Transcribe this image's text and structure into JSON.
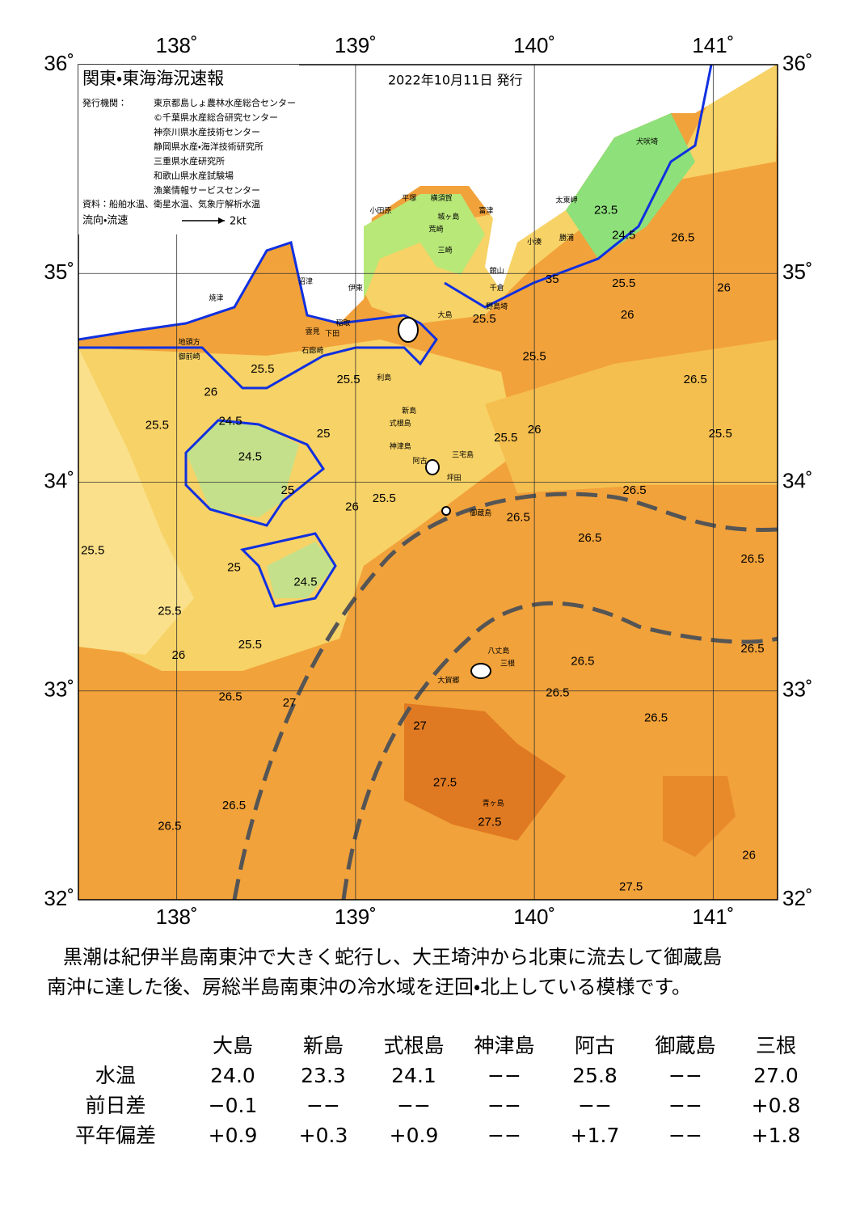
{
  "map": {
    "title": "関東・東海海況速報",
    "date": "2022年10月11日 発行",
    "issuer_label": "発行機関：",
    "issuers": [
      "東京都島しょ農林水産総合センター",
      "©千葉県水産総合研究センター",
      "神奈川県水産技術センター",
      "静岡県水産・海洋技術研究所",
      "三重県水産研究所",
      "和歌山県水産試験場",
      "漁業情報サービスセンター"
    ],
    "sources": "資料：船舶水温、衛星水温、気象庁解析水温",
    "legend_label": "流向・流速",
    "legend_scale": "2kt",
    "lon_ticks": [
      {
        "value": 138,
        "label": "138˚"
      },
      {
        "value": 139,
        "label": "139˚"
      },
      {
        "value": 140,
        "label": "140˚"
      },
      {
        "value": 141,
        "label": "141˚"
      }
    ],
    "lat_ticks": [
      {
        "value": 36,
        "label": "36˚"
      },
      {
        "value": 35,
        "label": "35˚"
      },
      {
        "value": 34,
        "label": "34˚"
      },
      {
        "value": 33,
        "label": "33˚"
      },
      {
        "value": 32,
        "label": "32˚"
      }
    ],
    "lonlim": [
      137.45,
      141.36
    ],
    "latlim": [
      32,
      36
    ],
    "place_names": [
      {
        "label": "犬吠埼",
        "lon": 140.63,
        "lat": 35.63
      },
      {
        "label": "太東岬",
        "lon": 140.18,
        "lat": 35.35
      },
      {
        "label": "勝浦",
        "lon": 140.18,
        "lat": 35.17
      },
      {
        "label": "小湊",
        "lon": 140.0,
        "lat": 35.15
      },
      {
        "label": "館山",
        "lon": 139.79,
        "lat": 35.01
      },
      {
        "label": "千倉",
        "lon": 139.79,
        "lat": 34.93
      },
      {
        "label": "野島埼",
        "lon": 139.79,
        "lat": 34.84
      },
      {
        "label": "富津",
        "lon": 139.73,
        "lat": 35.3
      },
      {
        "label": "横須賀",
        "lon": 139.48,
        "lat": 35.36
      },
      {
        "label": "城ヶ島",
        "lon": 139.52,
        "lat": 35.27
      },
      {
        "label": "荒崎",
        "lon": 139.45,
        "lat": 35.21
      },
      {
        "label": "三崎",
        "lon": 139.5,
        "lat": 35.11
      },
      {
        "label": "平塚",
        "lon": 139.3,
        "lat": 35.36
      },
      {
        "label": "小田原",
        "lon": 139.14,
        "lat": 35.3
      },
      {
        "label": "伊東",
        "lon": 139.0,
        "lat": 34.93
      },
      {
        "label": "沼津",
        "lon": 138.72,
        "lat": 34.96
      },
      {
        "label": "焼津",
        "lon": 138.22,
        "lat": 34.88
      },
      {
        "label": "地頭方",
        "lon": 138.07,
        "lat": 34.67
      },
      {
        "label": "御前崎",
        "lon": 138.07,
        "lat": 34.6
      },
      {
        "label": "稲取",
        "lon": 138.93,
        "lat": 34.76
      },
      {
        "label": "下田",
        "lon": 138.87,
        "lat": 34.71
      },
      {
        "label": "雲見",
        "lon": 138.76,
        "lat": 34.72
      },
      {
        "label": "石廊崎",
        "lon": 138.76,
        "lat": 34.63
      },
      {
        "label": "大島",
        "lon": 139.5,
        "lat": 34.8
      },
      {
        "label": "利島",
        "lon": 139.16,
        "lat": 34.5
      },
      {
        "label": "新島",
        "lon": 139.3,
        "lat": 34.34
      },
      {
        "label": "式根島",
        "lon": 139.25,
        "lat": 34.28
      },
      {
        "label": "神津島",
        "lon": 139.25,
        "lat": 34.17
      },
      {
        "label": "阿古",
        "lon": 139.36,
        "lat": 34.1
      },
      {
        "label": "三宅島",
        "lon": 139.6,
        "lat": 34.13
      },
      {
        "label": "坪田",
        "lon": 139.55,
        "lat": 34.02
      },
      {
        "label": "御蔵島",
        "lon": 139.7,
        "lat": 33.85
      },
      {
        "label": "八丈島",
        "lon": 139.8,
        "lat": 33.19
      },
      {
        "label": "三根",
        "lon": 139.85,
        "lat": 33.13
      },
      {
        "label": "大賀郷",
        "lon": 139.52,
        "lat": 33.05
      },
      {
        "label": "青ヶ島",
        "lon": 139.77,
        "lat": 32.46
      }
    ],
    "contour_labels": [
      {
        "label": "26",
        "lon": 138.19,
        "lat": 34.43
      },
      {
        "label": "25.5",
        "lon": 137.89,
        "lat": 34.27
      },
      {
        "label": "24.5",
        "lon": 138.3,
        "lat": 34.29
      },
      {
        "label": "24.5",
        "lon": 138.41,
        "lat": 34.12
      },
      {
        "label": "25.5",
        "lon": 138.48,
        "lat": 34.54
      },
      {
        "label": "25.5",
        "lon": 138.96,
        "lat": 34.49
      },
      {
        "label": "25",
        "lon": 138.82,
        "lat": 34.23
      },
      {
        "label": "25.5",
        "lon": 139.16,
        "lat": 33.92
      },
      {
        "label": "26",
        "lon": 138.98,
        "lat": 33.88
      },
      {
        "label": "25.5",
        "lon": 137.53,
        "lat": 33.67
      },
      {
        "label": "25.5",
        "lon": 137.96,
        "lat": 33.38
      },
      {
        "label": "26",
        "lon": 138.01,
        "lat": 33.17
      },
      {
        "label": "24.5",
        "lon": 138.72,
        "lat": 33.52
      },
      {
        "label": "26.5",
        "lon": 139.91,
        "lat": 33.83
      },
      {
        "label": "26.5",
        "lon": 140.31,
        "lat": 33.73
      },
      {
        "label": "26.5",
        "lon": 140.56,
        "lat": 33.96
      },
      {
        "label": "26.5",
        "lon": 141.22,
        "lat": 33.63
      },
      {
        "label": "26.5",
        "lon": 140.68,
        "lat": 32.87
      },
      {
        "label": "26.5",
        "lon": 140.13,
        "lat": 32.99
      },
      {
        "label": "27.5",
        "lon": 139.5,
        "lat": 32.56
      },
      {
        "label": "27.5",
        "lon": 139.75,
        "lat": 32.37
      },
      {
        "label": "27.5",
        "lon": 140.54,
        "lat": 32.06
      },
      {
        "label": "27",
        "lon": 139.36,
        "lat": 32.83
      },
      {
        "label": "26.5",
        "lon": 138.3,
        "lat": 32.97
      },
      {
        "label": "26.5",
        "lon": 138.32,
        "lat": 32.45
      },
      {
        "label": "26.5",
        "lon": 137.96,
        "lat": 32.35
      },
      {
        "label": "25.5",
        "lon": 139.72,
        "lat": 34.78
      },
      {
        "label": "25.5",
        "lon": 140.0,
        "lat": 34.6
      },
      {
        "label": "25.5",
        "lon": 140.5,
        "lat": 34.95
      },
      {
        "label": "26",
        "lon": 140.52,
        "lat": 34.8
      },
      {
        "label": "26",
        "lon": 141.06,
        "lat": 34.93
      },
      {
        "label": "26.5",
        "lon": 140.9,
        "lat": 34.49
      },
      {
        "label": "25.5",
        "lon": 141.04,
        "lat": 34.23
      },
      {
        "label": "25.5",
        "lon": 139.84,
        "lat": 34.21
      },
      {
        "label": "26",
        "lon": 140.0,
        "lat": 34.25
      },
      {
        "label": "24.5",
        "lon": 140.5,
        "lat": 35.18
      },
      {
        "label": "23.5",
        "lon": 140.4,
        "lat": 35.3
      },
      {
        "label": "26.5",
        "lon": 140.83,
        "lat": 35.17
      },
      {
        "label": "25",
        "lon": 138.62,
        "lat": 33.96
      },
      {
        "label": "25",
        "lon": 138.32,
        "lat": 33.59
      },
      {
        "label": "25.5",
        "lon": 138.41,
        "lat": 33.22
      },
      {
        "label": "26.5",
        "lon": 140.27,
        "lat": 33.14
      },
      {
        "label": "26",
        "lon": 141.2,
        "lat": 32.21
      },
      {
        "label": "35",
        "lon": 140.1,
        "lat": 34.97
      },
      {
        "label": "27",
        "lon": 138.63,
        "lat": 32.94
      },
      {
        "label": "26.5",
        "lon": 141.22,
        "lat": 33.2
      }
    ]
  },
  "description": [
    "黒潮は紀伊半島南東沖で大きく蛇行し、大王埼沖から北東に流去して御蔵島",
    "南沖に達した後、房総半島南東沖の冷水域を迂回・北上している模様です。"
  ],
  "table": {
    "columns": [
      "大島",
      "新島",
      "式根島",
      "神津島",
      "阿古",
      "御蔵島",
      "三根"
    ],
    "rows": [
      {
        "label": "水温",
        "cells": [
          "24.0",
          "23.3",
          "24.1",
          "−−",
          "25.8",
          "−−",
          "27.0"
        ]
      },
      {
        "label": "前日差",
        "cells": [
          "−0.1",
          "−−",
          "−−",
          "−−",
          "−−",
          "−−",
          "+0.8"
        ]
      },
      {
        "label": "平年偏差",
        "cells": [
          "+0.9",
          "+0.3",
          "+0.9",
          "−−",
          "+1.7",
          "−−",
          "+1.8"
        ]
      }
    ]
  }
}
